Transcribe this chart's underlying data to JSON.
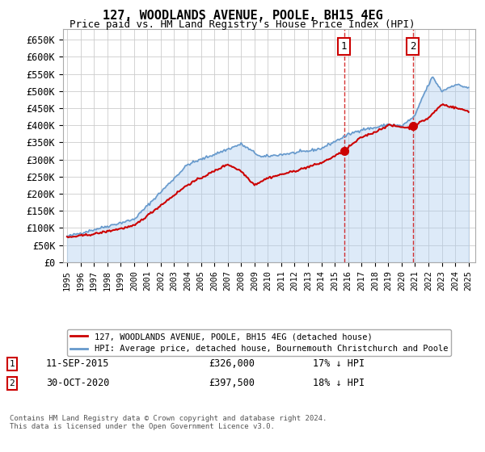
{
  "title": "127, WOODLANDS AVENUE, POOLE, BH15 4EG",
  "subtitle": "Price paid vs. HM Land Registry's House Price Index (HPI)",
  "ylabel_ticks": [
    "£0",
    "£50K",
    "£100K",
    "£150K",
    "£200K",
    "£250K",
    "£300K",
    "£350K",
    "£400K",
    "£450K",
    "£500K",
    "£550K",
    "£600K",
    "£650K"
  ],
  "ytick_values": [
    0,
    50000,
    100000,
    150000,
    200000,
    250000,
    300000,
    350000,
    400000,
    450000,
    500000,
    550000,
    600000,
    650000
  ],
  "ylim": [
    0,
    680000
  ],
  "xlim_start": 1994.7,
  "xlim_end": 2025.5,
  "xtick_years": [
    1995,
    1996,
    1997,
    1998,
    1999,
    2000,
    2001,
    2002,
    2003,
    2004,
    2005,
    2006,
    2007,
    2008,
    2009,
    2010,
    2011,
    2012,
    2013,
    2014,
    2015,
    2016,
    2017,
    2018,
    2019,
    2020,
    2021,
    2022,
    2023,
    2024,
    2025
  ],
  "sale1_x": 2015.7,
  "sale1_y": 326000,
  "sale1_label": "1",
  "sale2_x": 2020.83,
  "sale2_y": 397500,
  "sale2_label": "2",
  "hpi_color": "#6699cc",
  "hpi_fill_color": "#aaccee",
  "hpi_fill_alpha": 0.4,
  "price_color": "#cc0000",
  "marker_color": "#cc0000",
  "dashed_line_color": "#cc0000",
  "background_color": "#ffffff",
  "grid_color": "#cccccc",
  "legend_label_price": "127, WOODLANDS AVENUE, POOLE, BH15 4EG (detached house)",
  "legend_label_hpi": "HPI: Average price, detached house, Bournemouth Christchurch and Poole",
  "note1_label": "1",
  "note1_date": "11-SEP-2015",
  "note1_price": "£326,000",
  "note1_hpi": "17% ↓ HPI",
  "note2_label": "2",
  "note2_date": "30-OCT-2020",
  "note2_price": "£397,500",
  "note2_hpi": "18% ↓ HPI",
  "footer": "Contains HM Land Registry data © Crown copyright and database right 2024.\nThis data is licensed under the Open Government Licence v3.0."
}
